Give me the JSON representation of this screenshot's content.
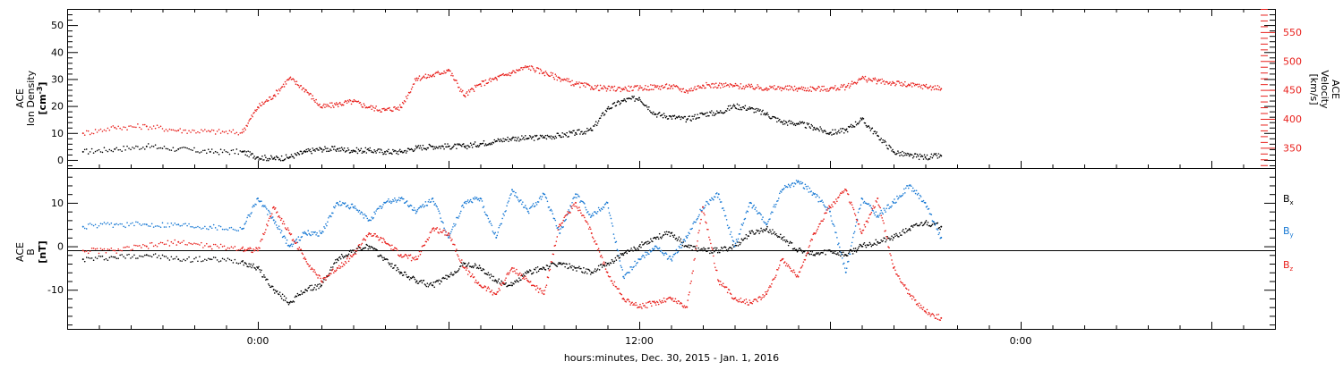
{
  "colors": {
    "black": "#000000",
    "red": "#e8211d",
    "blue": "#1a7ad4"
  },
  "x_axis": {
    "label": "hours:minutes, Dec. 30, 2015 - Jan.  1, 2016",
    "range_hours": [
      -6,
      32
    ],
    "tick_labels": [
      {
        "hour": 0,
        "text": "0:00"
      },
      {
        "hour": 12,
        "text": "12:00"
      },
      {
        "hour": 24,
        "text": "0:00"
      }
    ]
  },
  "chart_data": [
    {
      "type": "scatter",
      "panel": "top",
      "left_axis": {
        "label_lines": [
          "ACE",
          "Ion Density"
        ],
        "unit": "cm",
        "unit_exp": "-3",
        "ylim": [
          -3,
          56
        ],
        "ticks": [
          0,
          10,
          20,
          30,
          40,
          50
        ]
      },
      "right_axis": {
        "label_lines": [
          "ACE",
          "Velocity"
        ],
        "unit": "[km/s]",
        "ylim": [
          315,
          590
        ],
        "ticks": [
          350,
          400,
          450,
          500,
          550
        ]
      },
      "series": [
        {
          "axis": "left",
          "color": "black",
          "points": [
            [
              -5.5,
              3
            ],
            [
              -4.5,
              4
            ],
            [
              -3.5,
              5
            ],
            [
              -2.5,
              4
            ],
            [
              -1.5,
              3
            ],
            [
              -0.5,
              3
            ],
            [
              0,
              1
            ],
            [
              0.5,
              0.5
            ],
            [
              1,
              1
            ],
            [
              1.5,
              3
            ],
            [
              2,
              4
            ],
            [
              2.5,
              4
            ],
            [
              3,
              3.5
            ],
            [
              3.5,
              3.5
            ],
            [
              4,
              3
            ],
            [
              4.5,
              3
            ],
            [
              5,
              4.5
            ],
            [
              5.5,
              5
            ],
            [
              6,
              5
            ],
            [
              6.5,
              5
            ],
            [
              7,
              6
            ],
            [
              7.5,
              7
            ],
            [
              8,
              8
            ],
            [
              8.5,
              8
            ],
            [
              9,
              8.5
            ],
            [
              9.5,
              9
            ],
            [
              10,
              10
            ],
            [
              10.5,
              11
            ],
            [
              11,
              19
            ],
            [
              11.5,
              22
            ],
            [
              12,
              23
            ],
            [
              12.5,
              17
            ],
            [
              13,
              16
            ],
            [
              13.5,
              15
            ],
            [
              14,
              17
            ],
            [
              14.5,
              17.5
            ],
            [
              15,
              20
            ],
            [
              15.5,
              19
            ],
            [
              16,
              17
            ],
            [
              16.5,
              14
            ],
            [
              17,
              13.5
            ],
            [
              17.5,
              12
            ],
            [
              18,
              10
            ],
            [
              18.5,
              11
            ],
            [
              19,
              15
            ],
            [
              19.5,
              9
            ],
            [
              20,
              3
            ],
            [
              20.5,
              1.5
            ],
            [
              21,
              1
            ],
            [
              21.5,
              1.5
            ]
          ]
        },
        {
          "axis": "right",
          "color": "red",
          "points": [
            [
              -5.5,
              375
            ],
            [
              -4.5,
              385
            ],
            [
              -3.5,
              387
            ],
            [
              -2.5,
              380
            ],
            [
              -1.5,
              378
            ],
            [
              -0.5,
              376
            ],
            [
              0,
              420
            ],
            [
              0.5,
              440
            ],
            [
              1,
              470
            ],
            [
              1.5,
              450
            ],
            [
              2,
              420
            ],
            [
              2.5,
              425
            ],
            [
              3,
              430
            ],
            [
              3.5,
              420
            ],
            [
              4,
              415
            ],
            [
              4.5,
              420
            ],
            [
              5,
              470
            ],
            [
              5.5,
              475
            ],
            [
              6,
              485
            ],
            [
              6.5,
              440
            ],
            [
              7,
              460
            ],
            [
              7.5,
              470
            ],
            [
              8,
              480
            ],
            [
              8.5,
              490
            ],
            [
              9,
              480
            ],
            [
              9.5,
              470
            ],
            [
              10,
              460
            ],
            [
              10.5,
              455
            ],
            [
              11,
              452
            ],
            [
              11.5,
              452
            ],
            [
              12,
              453
            ],
            [
              12.5,
              455
            ],
            [
              13,
              456
            ],
            [
              13.5,
              448
            ],
            [
              14,
              458
            ],
            [
              14.5,
              458
            ],
            [
              15,
              457
            ],
            [
              15.5,
              455
            ],
            [
              16,
              453
            ],
            [
              16.5,
              453
            ],
            [
              17,
              452
            ],
            [
              17.5,
              452
            ],
            [
              18,
              452
            ],
            [
              18.5,
              455
            ],
            [
              19,
              470
            ],
            [
              19.5,
              465
            ],
            [
              20,
              462
            ],
            [
              20.5,
              458
            ],
            [
              21,
              456
            ],
            [
              21.5,
              452
            ]
          ]
        }
      ]
    },
    {
      "type": "scatter",
      "panel": "bottom",
      "left_axis": {
        "label_lines": [
          "ACE",
          "B"
        ],
        "unit": "[nT]",
        "ylim": [
          -19,
          18
        ],
        "ticks": [
          -10,
          0,
          10
        ]
      },
      "legend": {
        "placement": "right",
        "entries": [
          {
            "base": "B",
            "sub": "x",
            "color": "black"
          },
          {
            "base": "B",
            "sub": "y",
            "color": "blue"
          },
          {
            "base": "B",
            "sub": "z",
            "color": "red"
          }
        ]
      },
      "series": [
        {
          "name": "Bx",
          "color": "black",
          "points": [
            [
              -5.5,
              -3
            ],
            [
              -4.5,
              -2.5
            ],
            [
              -3.5,
              -2
            ],
            [
              -2.5,
              -3
            ],
            [
              -1.5,
              -3
            ],
            [
              -0.5,
              -3.5
            ],
            [
              0,
              -5
            ],
            [
              0.5,
              -10
            ],
            [
              1,
              -13
            ],
            [
              1.5,
              -10
            ],
            [
              2,
              -9
            ],
            [
              2.5,
              -3
            ],
            [
              3,
              -1
            ],
            [
              3.5,
              0
            ],
            [
              4,
              -3
            ],
            [
              4.5,
              -6
            ],
            [
              5,
              -8
            ],
            [
              5.5,
              -9
            ],
            [
              6,
              -7
            ],
            [
              6.5,
              -4
            ],
            [
              7,
              -5
            ],
            [
              7.5,
              -8
            ],
            [
              8,
              -9
            ],
            [
              8.5,
              -6
            ],
            [
              9,
              -5
            ],
            [
              9.5,
              -4
            ],
            [
              10,
              -5
            ],
            [
              10.5,
              -6
            ],
            [
              11,
              -4
            ],
            [
              11.5,
              -2
            ],
            [
              12,
              0
            ],
            [
              12.5,
              2
            ],
            [
              13,
              3
            ],
            [
              13.5,
              0
            ],
            [
              14,
              -1
            ],
            [
              14.5,
              -1
            ],
            [
              15,
              0
            ],
            [
              15.5,
              3
            ],
            [
              16,
              4
            ],
            [
              16.5,
              2
            ],
            [
              17,
              -1
            ],
            [
              17.5,
              -2
            ],
            [
              18,
              -1
            ],
            [
              18.5,
              -2
            ],
            [
              19,
              0
            ],
            [
              19.5,
              1
            ],
            [
              20,
              2
            ],
            [
              20.5,
              4
            ],
            [
              21,
              5.5
            ],
            [
              21.5,
              4.5
            ]
          ]
        },
        {
          "name": "By",
          "color": "blue",
          "points": [
            [
              -5.5,
              4.5
            ],
            [
              -4.5,
              5
            ],
            [
              -3.5,
              5
            ],
            [
              -2.5,
              5
            ],
            [
              -1.5,
              4.5
            ],
            [
              -0.5,
              4
            ],
            [
              0,
              11
            ],
            [
              0.5,
              6
            ],
            [
              1,
              0
            ],
            [
              1.5,
              3
            ],
            [
              2,
              3
            ],
            [
              2.5,
              10
            ],
            [
              3,
              9
            ],
            [
              3.5,
              6
            ],
            [
              4,
              10
            ],
            [
              4.5,
              11
            ],
            [
              5,
              8
            ],
            [
              5.5,
              11
            ],
            [
              6,
              2
            ],
            [
              6.5,
              10
            ],
            [
              7,
              11
            ],
            [
              7.5,
              2
            ],
            [
              8,
              13
            ],
            [
              8.5,
              8
            ],
            [
              9,
              12
            ],
            [
              9.5,
              3
            ],
            [
              10,
              12
            ],
            [
              10.5,
              7
            ],
            [
              11,
              10
            ],
            [
              11.5,
              -7
            ],
            [
              12,
              -3
            ],
            [
              12.5,
              0
            ],
            [
              13,
              -3
            ],
            [
              13.5,
              2
            ],
            [
              14,
              9
            ],
            [
              14.5,
              12
            ],
            [
              15,
              0
            ],
            [
              15.5,
              10
            ],
            [
              16,
              5
            ],
            [
              16.5,
              13
            ],
            [
              17,
              15
            ],
            [
              17.5,
              12
            ],
            [
              18,
              8
            ],
            [
              18.5,
              -6
            ],
            [
              19,
              11
            ],
            [
              19.5,
              7
            ],
            [
              20,
              10
            ],
            [
              20.5,
              14
            ],
            [
              21,
              10
            ],
            [
              21.5,
              2
            ]
          ]
        },
        {
          "name": "Bz",
          "color": "red",
          "points": [
            [
              -5.5,
              -1
            ],
            [
              -4.5,
              -1
            ],
            [
              -3.5,
              0
            ],
            [
              -2.5,
              1
            ],
            [
              -1.5,
              0
            ],
            [
              -0.5,
              -0.5
            ],
            [
              0,
              -1
            ],
            [
              0.5,
              9
            ],
            [
              1,
              3
            ],
            [
              1.5,
              -3
            ],
            [
              2,
              -8
            ],
            [
              2.5,
              -5
            ],
            [
              3,
              -2
            ],
            [
              3.5,
              3
            ],
            [
              4,
              1
            ],
            [
              4.5,
              -2
            ],
            [
              5,
              -3
            ],
            [
              5.5,
              4
            ],
            [
              6,
              3
            ],
            [
              6.5,
              -5
            ],
            [
              7,
              -9
            ],
            [
              7.5,
              -11
            ],
            [
              8,
              -5
            ],
            [
              8.5,
              -8
            ],
            [
              9,
              -11
            ],
            [
              9.5,
              5
            ],
            [
              10,
              10
            ],
            [
              10.5,
              3
            ],
            [
              11,
              -6
            ],
            [
              11.5,
              -12
            ],
            [
              12,
              -14
            ],
            [
              12.5,
              -13
            ],
            [
              13,
              -12
            ],
            [
              13.5,
              -14
            ],
            [
              14,
              9
            ],
            [
              14.5,
              -8
            ],
            [
              15,
              -12
            ],
            [
              15.5,
              -13
            ],
            [
              16,
              -11
            ],
            [
              16.5,
              -3
            ],
            [
              17,
              -7
            ],
            [
              17.5,
              3
            ],
            [
              18,
              9
            ],
            [
              18.5,
              13
            ],
            [
              19,
              3
            ],
            [
              19.5,
              11
            ],
            [
              20,
              -5
            ],
            [
              20.5,
              -11
            ],
            [
              21,
              -15
            ],
            [
              21.5,
              -16.5
            ]
          ]
        }
      ]
    }
  ]
}
